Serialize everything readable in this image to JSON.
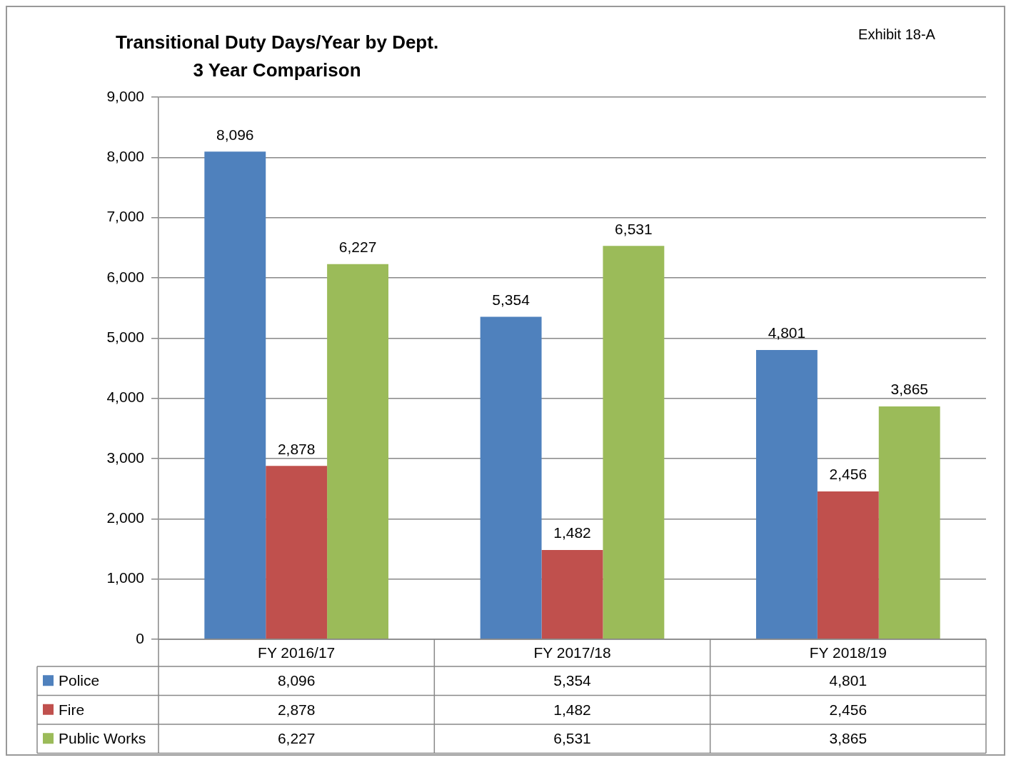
{
  "chart_data": {
    "type": "bar",
    "title": "Transitional Duty Days/Year by Dept.",
    "subtitle": "3 Year Comparison",
    "annotations": [
      "Exhibit 18-A"
    ],
    "categories": [
      "FY 2016/17",
      "FY 2017/18",
      "FY 2018/19"
    ],
    "series": [
      {
        "name": "Police",
        "color": "#4f81bd",
        "values": [
          8096,
          5354,
          4801
        ],
        "value_labels": [
          "8,096",
          "5,354",
          "4,801"
        ]
      },
      {
        "name": "Fire",
        "color": "#c0504d",
        "values": [
          2878,
          1482,
          2456
        ],
        "value_labels": [
          "2,878",
          "1,482",
          "2,456"
        ]
      },
      {
        "name": "Public Works",
        "color": "#9bbb59",
        "values": [
          6227,
          6531,
          3865
        ],
        "value_labels": [
          "6,227",
          "6,531",
          "3,865"
        ]
      }
    ],
    "ylim": [
      0,
      9000
    ],
    "yticks": [
      0,
      {
        "value": 1000,
        "label": "1,000"
      },
      {
        "value": 2000,
        "label": "2,000"
      },
      {
        "value": 3000,
        "label": "3,000"
      },
      {
        "value": 4000,
        "label": "4,000"
      },
      {
        "value": 5000,
        "label": "5,000"
      },
      {
        "value": 6000,
        "label": "6,000"
      },
      {
        "value": 7000,
        "label": "7,000"
      },
      {
        "value": 8000,
        "label": "8,000"
      },
      {
        "value": 9000,
        "label": "9,000"
      }
    ],
    "grid": "y",
    "legend": "bottom"
  }
}
